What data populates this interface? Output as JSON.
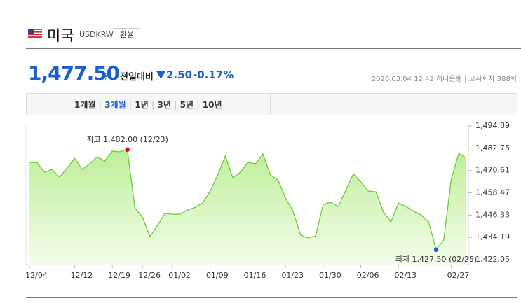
{
  "header": {
    "title": "미국",
    "code": "USDKRW",
    "button": "환율"
  },
  "quote": {
    "price": "1,477.50",
    "unit": "원",
    "change_label": "전일대비",
    "change": "2.50",
    "change_pct": "-0.17%",
    "datetime": "2026.03.04 12:42",
    "bank": "하나은행",
    "round": "고시회차 388회"
  },
  "tabs": [
    "1개월",
    "3개월",
    "1년",
    "3년",
    "5년",
    "10년"
  ],
  "chart_data": {
    "type": "area",
    "color": "#66cc33",
    "categories": [
      "12/04",
      null,
      null,
      null,
      null,
      null,
      "12/12",
      null,
      null,
      null,
      null,
      "12/19",
      null,
      null,
      null,
      "12/26",
      null,
      null,
      null,
      "01/02",
      null,
      null,
      null,
      null,
      "01/09",
      null,
      null,
      null,
      null,
      "01/16",
      null,
      null,
      null,
      null,
      "01/23",
      null,
      null,
      null,
      null,
      "01/30",
      null,
      null,
      null,
      null,
      "02/06",
      null,
      null,
      null,
      null,
      "02/13",
      null,
      null,
      null,
      null,
      null,
      null,
      "02/27",
      null,
      null
    ],
    "values": [
      1475.1,
      1475.0,
      1469.7,
      1471.2,
      1467.0,
      1472.0,
      1477.3,
      1471.2,
      1474.3,
      1478.1,
      1475.8,
      1481.2,
      1480.8,
      1482.0,
      1450.3,
      1445.3,
      1434.6,
      1440.7,
      1447.2,
      1446.8,
      1446.8,
      1449.1,
      1450.6,
      1452.9,
      1459.4,
      1468.2,
      1478.5,
      1466.7,
      1469.7,
      1475.0,
      1474.3,
      1479.6,
      1468.2,
      1465.5,
      1455.6,
      1448.4,
      1435.4,
      1433.9,
      1435.0,
      1452.2,
      1453.3,
      1451.0,
      1459.8,
      1468.8,
      1464.4,
      1459.4,
      1459.0,
      1448.0,
      1442.6,
      1452.9,
      1451.0,
      1448.4,
      1446.5,
      1442.6,
      1427.5,
      1432.7,
      1465.9,
      1480.0,
      1477.5
    ],
    "ylim": [
      1419.4,
      1494.89
    ],
    "yticks": [
      {
        "value": 1494.89,
        "label": "1,494.89"
      },
      {
        "value": 1482.75,
        "label": "1,482.75"
      },
      {
        "value": 1470.61,
        "label": "1,470.61"
      },
      {
        "value": 1458.47,
        "label": "1,458.47"
      },
      {
        "value": 1446.33,
        "label": "1,446.33"
      },
      {
        "value": 1434.19,
        "label": "1,434.19"
      },
      {
        "value": 1422.05,
        "label": "1,422.05"
      }
    ],
    "annotations": [
      {
        "text": "최고 1,482.00 (12/23)",
        "index": 13,
        "color": "#e0001b"
      },
      {
        "text": "최저 1,427.50 (02/25)",
        "index": 54,
        "color": "#1a5fd0"
      }
    ]
  }
}
